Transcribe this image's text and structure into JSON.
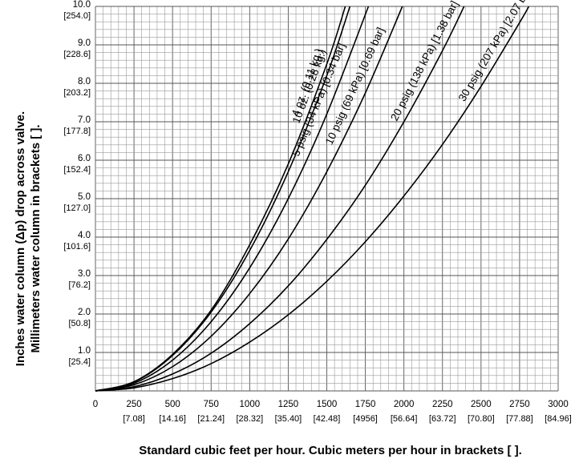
{
  "chart_data": {
    "type": "line",
    "title": "",
    "xlabel": "Standard cubic feet per hour. Cubic meters per hour in brackets [ ].",
    "ylabel_line1": "Inches water column (Δp) drop across valve.",
    "ylabel_line2": "Millimeters water column in brackets [ ].",
    "xlim": [
      0,
      3000
    ],
    "ylim": [
      0,
      10
    ],
    "grid": true,
    "x_ticks": [
      0,
      250,
      500,
      750,
      1000,
      1250,
      1500,
      1750,
      2000,
      2250,
      2500,
      2750,
      3000
    ],
    "x_tick_labels": [
      "0",
      "250",
      "500",
      "750",
      "1000",
      "1250",
      "1500",
      "1750",
      "2000",
      "2250",
      "2500",
      "2750",
      "3000"
    ],
    "x_sub_labels": [
      "[7.08]",
      "[14.16]",
      "[21.24]",
      "[28.32]",
      "[35.40]",
      "[42.48]",
      "[4956]",
      "[56.64]",
      "[63.72]",
      "[70.80]",
      "[77.88]",
      "[84.96]"
    ],
    "y_ticks": [
      1,
      2,
      3,
      4,
      5,
      6,
      7,
      8,
      9,
      10
    ],
    "y_tick_labels": [
      "1.0",
      "2.0",
      "3.0",
      "4.0",
      "5.0",
      "6.0",
      "7.0",
      "8.0",
      "9.0",
      "10.0"
    ],
    "y_sub_labels": [
      "[25.4]",
      "[50.8]",
      "[76.2]",
      "[101.6]",
      "[127.0]",
      "[152.4]",
      "[177.8]",
      "[203.2]",
      "[228.6]",
      "[254.0]"
    ],
    "series": [
      {
        "name": "4 oz. (0.11 kg.)",
        "x": [
          0,
          250,
          500,
          750,
          1000,
          1250,
          1500,
          1620
        ],
        "y": [
          0,
          0.24,
          0.95,
          2.1,
          3.8,
          5.9,
          8.5,
          10
        ]
      },
      {
        "name": "10 oz. (0.28 kg.)",
        "x": [
          0,
          250,
          500,
          750,
          1000,
          1250,
          1500,
          1650
        ],
        "y": [
          0,
          0.23,
          0.92,
          2.05,
          3.65,
          5.7,
          8.2,
          10
        ]
      },
      {
        "name": "5 psig (34 kPa) [0.34 bar]",
        "x": [
          0,
          250,
          500,
          750,
          1000,
          1250,
          1500,
          1770
        ],
        "y": [
          0,
          0.2,
          0.8,
          1.8,
          3.2,
          5.0,
          7.2,
          10
        ]
      },
      {
        "name": "10 psig (69 kPa) [0.69 bar]",
        "x": [
          0,
          250,
          500,
          750,
          1000,
          1250,
          1500,
          1750,
          1990
        ],
        "y": [
          0,
          0.16,
          0.63,
          1.42,
          2.53,
          3.95,
          5.7,
          7.75,
          10
        ]
      },
      {
        "name": "20 psig (138 kPa) [1.38 bar]",
        "x": [
          0,
          250,
          500,
          750,
          1000,
          1250,
          1500,
          1750,
          2000,
          2250,
          2390
        ],
        "y": [
          0,
          0.11,
          0.44,
          0.98,
          1.75,
          2.73,
          3.94,
          5.35,
          7.0,
          8.85,
          10
        ]
      },
      {
        "name": "30 psig (207 kPa) [2.07 bar]",
        "x": [
          0,
          250,
          500,
          750,
          1000,
          1250,
          1500,
          1750,
          2000,
          2250,
          2500,
          2750,
          2810
        ],
        "y": [
          0,
          0.08,
          0.32,
          0.71,
          1.27,
          1.98,
          2.85,
          3.88,
          5.07,
          6.41,
          7.92,
          9.58,
          10
        ]
      }
    ]
  }
}
